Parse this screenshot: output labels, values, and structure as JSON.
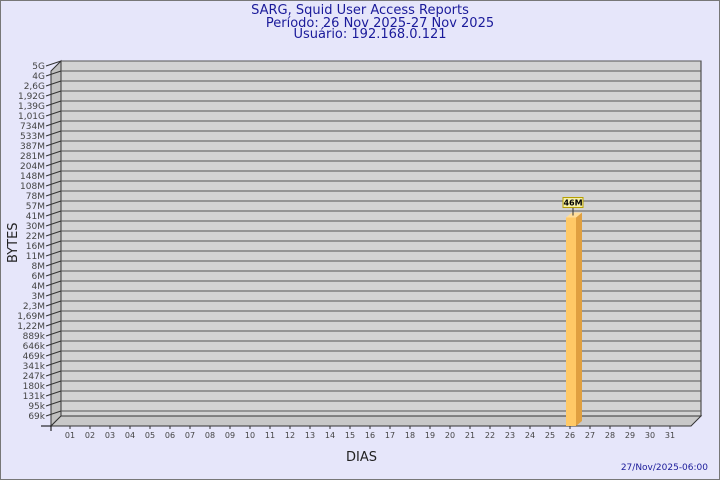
{
  "header": {
    "title": "SARG, Squid User Access Reports",
    "period": "Período: 26 Nov 2025-27 Nov 2025",
    "user": "Usuário: 192.168.0.121"
  },
  "footer": {
    "timestamp": "27/Nov/2025-06:00"
  },
  "chart_data": {
    "type": "bar",
    "title": "SARG, Squid User Access Reports",
    "xlabel": "DIAS",
    "ylabel": "BYTES",
    "log_scale": true,
    "grid": true,
    "three_d": true,
    "y_tick_labels": [
      "5G",
      "4G",
      "2,6G",
      "1,92G",
      "1,39G",
      "1,01G",
      "734M",
      "533M",
      "387M",
      "281M",
      "204M",
      "148M",
      "108M",
      "78M",
      "57M",
      "41M",
      "30M",
      "22M",
      "16M",
      "11M",
      "8M",
      "6M",
      "4M",
      "3M",
      "2,3M",
      "1,69M",
      "1,22M",
      "889k",
      "646k",
      "469k",
      "341k",
      "247k",
      "180k",
      "131k",
      "95k",
      "69k"
    ],
    "categories": [
      "01",
      "02",
      "03",
      "04",
      "05",
      "06",
      "07",
      "08",
      "09",
      "10",
      "11",
      "12",
      "13",
      "14",
      "15",
      "16",
      "17",
      "18",
      "19",
      "20",
      "21",
      "22",
      "23",
      "24",
      "25",
      "26",
      "27",
      "28",
      "29",
      "30",
      "31"
    ],
    "bars": [
      {
        "category": "26",
        "value": 46000000,
        "label": "46M"
      }
    ],
    "colors": {
      "bar": "#ffc966",
      "bar_side": "#e0a040",
      "wall": "#d3d3d3",
      "title": "#1a1a9a"
    }
  }
}
